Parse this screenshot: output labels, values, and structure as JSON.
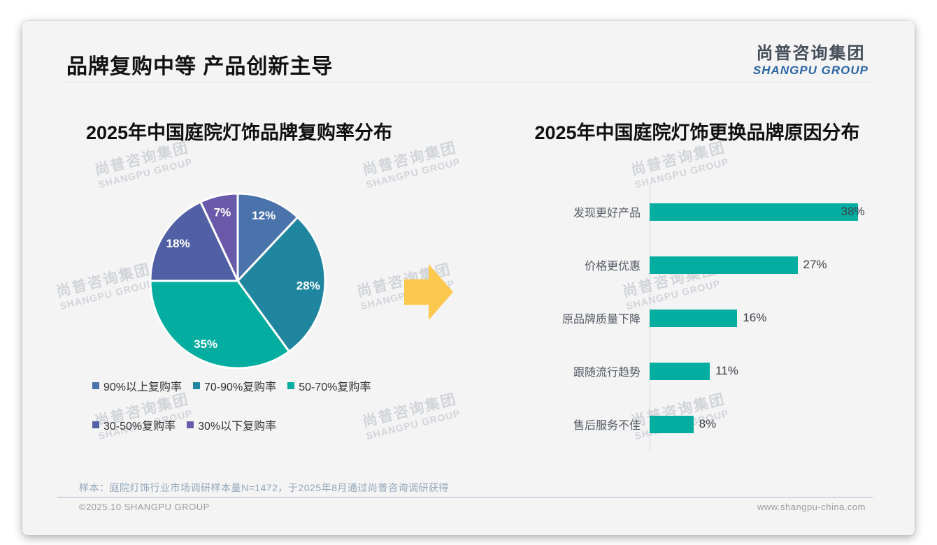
{
  "page": {
    "title": "品牌复购中等 产品创新主导",
    "logo": {
      "cn": "尚普咨询集团",
      "en": "SHANGPU GROUP"
    },
    "watermark": {
      "cn": "尚普咨询集团",
      "en": "SHANGPU GROUP"
    },
    "note": "样本：庭院灯饰行业市场调研样本量N=1472，于2025年8月通过尚普咨询调研获得",
    "footer": {
      "copyright": "©2025.10 SHANGPU GROUP",
      "website": "www.shangpu-china.com"
    }
  },
  "colors": {
    "accent_teal": "#03ada0",
    "arrow_yellow": "#fcc84e",
    "logo_blue": "#2b66a4",
    "note_blue_gray": "#93a7ba"
  },
  "chart_data": [
    {
      "type": "pie",
      "title": "2025年中国庭院灯饰品牌复购率分布",
      "labels": [
        "90%以上复购率",
        "70-90%复购率",
        "50-70%复购率",
        "30-50%复购率",
        "30%以下复购率"
      ],
      "values": [
        12,
        28,
        35,
        18,
        7
      ],
      "value_labels": [
        "12%",
        "28%",
        "35%",
        "18%",
        "7%"
      ],
      "colors": [
        "#4a72ab",
        "#2086a0",
        "#03ada0",
        "#515fa5",
        "#6a59a8"
      ],
      "start_angle_deg": 0,
      "direction": "clockwise",
      "legend_position": "bottom"
    },
    {
      "type": "bar",
      "orientation": "horizontal",
      "title": "2025年中国庭院灯饰更换品牌原因分布",
      "categories": [
        "发现更好产品",
        "价格更优惠",
        "原品牌质量下降",
        "跟随流行趋势",
        "售后服务不佳"
      ],
      "values": [
        38,
        27,
        16,
        11,
        8
      ],
      "value_labels": [
        "38%",
        "27%",
        "16%",
        "11%",
        "8%"
      ],
      "bar_color": "#03ada0",
      "xlim": [
        0,
        42
      ],
      "grid": false,
      "legend_position": "none"
    }
  ]
}
